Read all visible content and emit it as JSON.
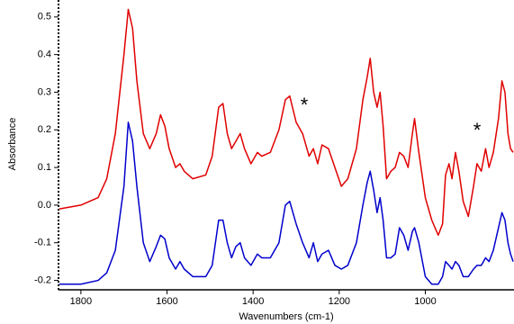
{
  "chart_data": {
    "type": "line",
    "xlabel": "Wavenumbers (cm-1)",
    "ylabel": "Absorbance",
    "x": [
      1850,
      1800,
      1760,
      1740,
      1720,
      1700,
      1690,
      1680,
      1670,
      1655,
      1640,
      1625,
      1615,
      1605,
      1595,
      1580,
      1570,
      1560,
      1540,
      1510,
      1495,
      1480,
      1470,
      1460,
      1450,
      1440,
      1430,
      1420,
      1405,
      1390,
      1380,
      1360,
      1340,
      1325,
      1315,
      1300,
      1285,
      1270,
      1260,
      1250,
      1240,
      1225,
      1210,
      1195,
      1180,
      1160,
      1145,
      1135,
      1128,
      1120,
      1112,
      1105,
      1098,
      1090,
      1080,
      1070,
      1060,
      1050,
      1040,
      1030,
      1025,
      1015,
      1000,
      985,
      970,
      960,
      953,
      945,
      938,
      930,
      922,
      912,
      900,
      888,
      880,
      870,
      860,
      852,
      842,
      830,
      822,
      815,
      808,
      802,
      796
    ],
    "series": [
      {
        "color": "#e00000",
        "values": [
          -0.01,
          0.0,
          0.02,
          0.07,
          0.19,
          0.4,
          0.52,
          0.47,
          0.33,
          0.19,
          0.15,
          0.19,
          0.24,
          0.21,
          0.15,
          0.1,
          0.11,
          0.09,
          0.07,
          0.08,
          0.13,
          0.26,
          0.27,
          0.19,
          0.15,
          0.17,
          0.19,
          0.15,
          0.11,
          0.14,
          0.13,
          0.14,
          0.2,
          0.28,
          0.29,
          0.22,
          0.19,
          0.13,
          0.15,
          0.11,
          0.16,
          0.15,
          0.1,
          0.05,
          0.07,
          0.15,
          0.28,
          0.34,
          0.39,
          0.3,
          0.26,
          0.3,
          0.21,
          0.07,
          0.09,
          0.1,
          0.14,
          0.13,
          0.1,
          0.19,
          0.23,
          0.14,
          0.02,
          -0.04,
          -0.08,
          -0.05,
          0.08,
          0.11,
          0.07,
          0.14,
          0.09,
          0.01,
          -0.03,
          0.05,
          0.11,
          0.09,
          0.15,
          0.1,
          0.14,
          0.23,
          0.33,
          0.3,
          0.19,
          0.15,
          0.14
        ]
      },
      {
        "color": "#0000cc",
        "values": [
          -0.21,
          -0.21,
          -0.2,
          -0.18,
          -0.12,
          0.05,
          0.22,
          0.17,
          0.05,
          -0.1,
          -0.15,
          -0.11,
          -0.08,
          -0.09,
          -0.14,
          -0.17,
          -0.15,
          -0.17,
          -0.19,
          -0.19,
          -0.16,
          -0.04,
          -0.04,
          -0.1,
          -0.14,
          -0.11,
          -0.1,
          -0.14,
          -0.16,
          -0.13,
          -0.14,
          -0.14,
          -0.1,
          0.0,
          0.01,
          -0.05,
          -0.1,
          -0.14,
          -0.1,
          -0.15,
          -0.13,
          -0.12,
          -0.16,
          -0.17,
          -0.16,
          -0.1,
          0.0,
          0.06,
          0.09,
          0.04,
          -0.02,
          0.02,
          -0.04,
          -0.14,
          -0.14,
          -0.13,
          -0.06,
          -0.08,
          -0.12,
          -0.07,
          -0.06,
          -0.1,
          -0.19,
          -0.21,
          -0.21,
          -0.19,
          -0.15,
          -0.16,
          -0.17,
          -0.15,
          -0.16,
          -0.19,
          -0.19,
          -0.17,
          -0.16,
          -0.16,
          -0.14,
          -0.15,
          -0.12,
          -0.06,
          -0.02,
          -0.04,
          -0.1,
          -0.13,
          -0.15
        ]
      }
    ],
    "xlim": [
      1852,
      794
    ],
    "xticks": [
      1800,
      1600,
      1400,
      1200,
      1000
    ],
    "ylim": [
      -0.225,
      0.545
    ],
    "yticks": [
      -0.2,
      -0.1,
      {
        "value": 0,
        "label": "0.0"
      },
      0.1,
      0.2,
      0.3,
      0.4,
      0.5
    ],
    "annotations": [
      "*",
      "*"
    ]
  }
}
